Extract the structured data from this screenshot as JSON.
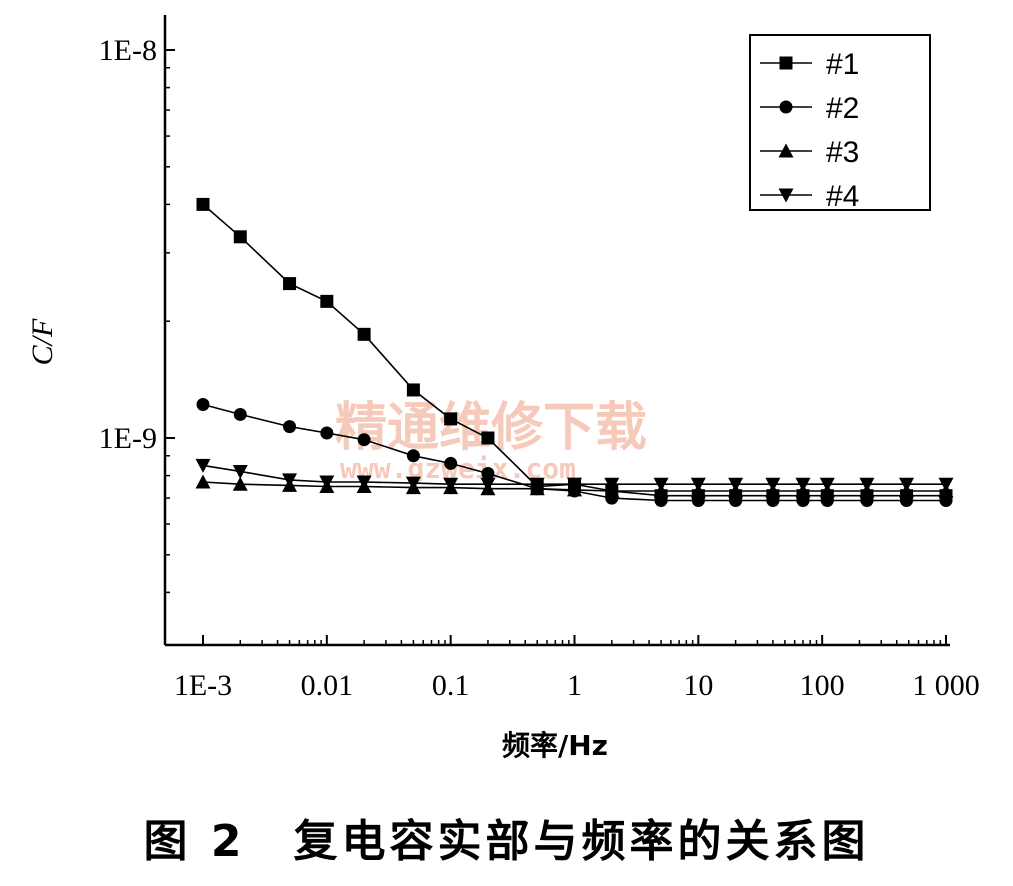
{
  "chart_data": {
    "type": "line",
    "xscale": "log",
    "yscale": "log",
    "xlim": [
      0.001,
      1000
    ],
    "ylim": [
      4e-10,
      1e-08
    ],
    "xlabel": "频率/Hz",
    "ylabel": "C/F",
    "xticks": [
      {
        "value": 0.001,
        "label": "1E-3"
      },
      {
        "value": 0.01,
        "label": "0.01"
      },
      {
        "value": 0.1,
        "label": "0.1"
      },
      {
        "value": 1,
        "label": "1"
      },
      {
        "value": 10,
        "label": "10"
      },
      {
        "value": 100,
        "label": "100"
      },
      {
        "value": 1000,
        "label": "1 000"
      }
    ],
    "yticks": [
      {
        "value": 1e-09,
        "label": "1E-9"
      },
      {
        "value": 1e-08,
        "label": "1E-8"
      }
    ],
    "legend_position": "top-right",
    "x": [
      0.001,
      0.002,
      0.005,
      0.01,
      0.02,
      0.05,
      0.1,
      0.2,
      0.5,
      1,
      2,
      5,
      10,
      20,
      40,
      70,
      110,
      230,
      480,
      1000
    ],
    "series": [
      {
        "name": "#1",
        "marker": "square",
        "values": [
          4e-09,
          3.3e-09,
          2.5e-09,
          2.25e-09,
          1.85e-09,
          1.33e-09,
          1.12e-09,
          1e-09,
          7.5e-10,
          7.6e-10,
          7.3e-10,
          7.1e-10,
          7.1e-10,
          7.1e-10,
          7.1e-10,
          7.1e-10,
          7.1e-10,
          7.1e-10,
          7.1e-10,
          7.1e-10
        ]
      },
      {
        "name": "#2",
        "marker": "circle",
        "values": [
          1.22e-09,
          1.15e-09,
          1.07e-09,
          1.03e-09,
          9.9e-10,
          9e-10,
          8.6e-10,
          8.1e-10,
          7.4e-10,
          7.3e-10,
          7e-10,
          6.9e-10,
          6.9e-10,
          6.9e-10,
          6.9e-10,
          6.9e-10,
          6.9e-10,
          6.9e-10,
          6.9e-10,
          6.9e-10
        ]
      },
      {
        "name": "#3",
        "marker": "triangle-up",
        "values": [
          7.7e-10,
          7.6e-10,
          7.55e-10,
          7.5e-10,
          7.5e-10,
          7.45e-10,
          7.45e-10,
          7.4e-10,
          7.4e-10,
          7.35e-10,
          7.3e-10,
          7.3e-10,
          7.3e-10,
          7.3e-10,
          7.3e-10,
          7.3e-10,
          7.3e-10,
          7.3e-10,
          7.3e-10,
          7.3e-10
        ]
      },
      {
        "name": "#4",
        "marker": "triangle-down",
        "values": [
          8.5e-10,
          8.2e-10,
          7.8e-10,
          7.7e-10,
          7.7e-10,
          7.65e-10,
          7.6e-10,
          7.6e-10,
          7.6e-10,
          7.6e-10,
          7.6e-10,
          7.6e-10,
          7.6e-10,
          7.6e-10,
          7.6e-10,
          7.6e-10,
          7.6e-10,
          7.6e-10,
          7.6e-10,
          7.6e-10
        ]
      }
    ]
  },
  "watermark": {
    "line1": "精通维修下载",
    "line2": "www.gzweix.com"
  },
  "caption": "图 2　复电容实部与频率的关系图"
}
